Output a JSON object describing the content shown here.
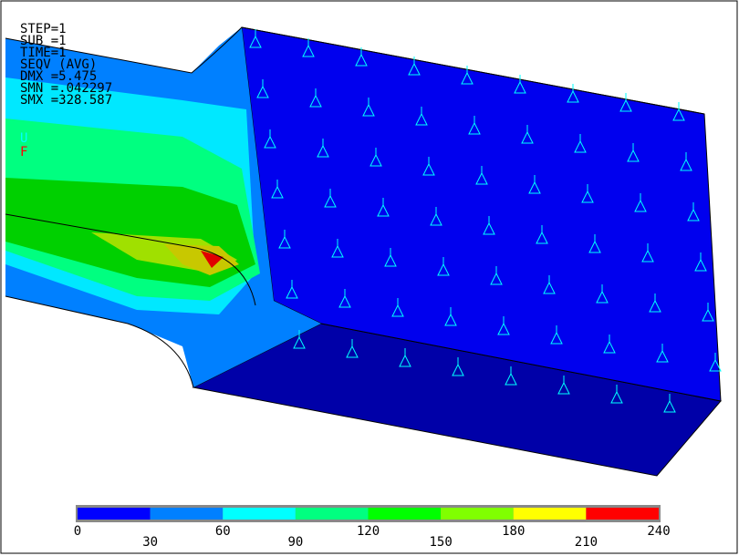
{
  "info": [
    "STEP=1",
    "SUB =1",
    "TIME=1",
    "SEQV     (AVG)",
    "DMX =5.475",
    "SMN =.042297",
    "SMX =328.587"
  ],
  "markers": [
    {
      "label": "U",
      "color": "#00ffff"
    },
    {
      "label": "F",
      "color": "#ff0000"
    }
  ],
  "colorbar": {
    "colors": [
      "#0000ff",
      "#0080ff",
      "#00ffff",
      "#00ff80",
      "#00ff00",
      "#80ff00",
      "#ffff00",
      "#ff0000"
    ],
    "labels": [
      "0",
      "30",
      "60",
      "90",
      "120",
      "150",
      "180",
      "210",
      "240"
    ]
  }
}
